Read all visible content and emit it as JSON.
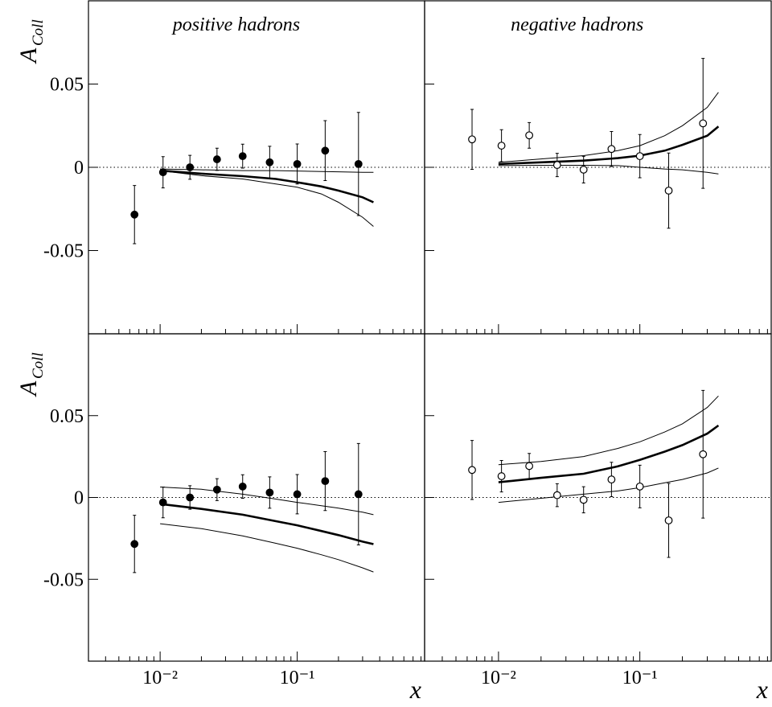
{
  "chart_data": [
    {
      "type": "scatter",
      "title": "positive hadrons",
      "ylabel": "A",
      "ylabel_sub": "Coll",
      "log_x": true,
      "xlim": [
        0.003,
        0.85
      ],
      "ylim": [
        -0.1,
        0.1
      ],
      "xticks": [
        0.01,
        0.1
      ],
      "xminorticks": [
        0.003,
        0.004,
        0.005,
        0.006,
        0.007,
        0.008,
        0.009,
        0.02,
        0.03,
        0.04,
        0.05,
        0.06,
        0.07,
        0.08,
        0.09,
        0.2,
        0.3,
        0.4,
        0.5,
        0.6,
        0.7,
        0.8
      ],
      "yticks": [
        -0.05,
        0,
        0.05
      ],
      "xtick_labels": false,
      "ytick_labels": true,
      "zero_line": true,
      "points": {
        "marker": "filled",
        "color": "#000000",
        "x": [
          0.0065,
          0.0105,
          0.0165,
          0.026,
          0.04,
          0.063,
          0.1,
          0.16,
          0.28
        ],
        "values": [
          -0.0284,
          -0.003,
          0.0,
          0.0048,
          0.0067,
          0.003,
          0.002,
          0.01,
          0.002
        ],
        "errors": [
          0.0175,
          0.0094,
          0.0072,
          0.0067,
          0.0072,
          0.0096,
          0.012,
          0.018,
          0.031
        ]
      },
      "curve_x": [
        0.01,
        0.02,
        0.04,
        0.07,
        0.1,
        0.15,
        0.2,
        0.3,
        0.36
      ],
      "series": [
        {
          "color": "#000000",
          "width": 1,
          "values": [
            -0.001,
            -0.0015,
            -0.002,
            -0.002,
            -0.0022,
            -0.0025,
            -0.0027,
            -0.003,
            -0.003
          ]
        },
        {
          "color": "#000000",
          "width": 2.6,
          "values": [
            -0.002,
            -0.0038,
            -0.0053,
            -0.007,
            -0.009,
            -0.0115,
            -0.014,
            -0.018,
            -0.021
          ]
        },
        {
          "color": "#000000",
          "width": 1,
          "values": [
            -0.002,
            -0.005,
            -0.007,
            -0.01,
            -0.012,
            -0.016,
            -0.021,
            -0.03,
            -0.0355
          ]
        }
      ]
    },
    {
      "type": "scatter",
      "title": "negative hadrons",
      "log_x": true,
      "xlim": [
        0.003,
        0.85
      ],
      "ylim": [
        -0.1,
        0.1
      ],
      "xticks": [
        0.01,
        0.1
      ],
      "xminorticks": [
        0.003,
        0.004,
        0.005,
        0.006,
        0.007,
        0.008,
        0.009,
        0.02,
        0.03,
        0.04,
        0.05,
        0.06,
        0.07,
        0.08,
        0.09,
        0.2,
        0.3,
        0.4,
        0.5,
        0.6,
        0.7,
        0.8
      ],
      "yticks": [
        -0.05,
        0,
        0.05
      ],
      "xtick_labels": false,
      "ytick_labels": false,
      "zero_line": true,
      "points": {
        "marker": "open",
        "color": "#000000",
        "x": [
          0.0065,
          0.0105,
          0.0165,
          0.026,
          0.04,
          0.063,
          0.1,
          0.16,
          0.28
        ],
        "values": [
          0.0168,
          0.013,
          0.0192,
          0.0014,
          -0.0014,
          0.011,
          0.0067,
          -0.014,
          0.0264
        ],
        "errors": [
          0.018,
          0.0096,
          0.0077,
          0.007,
          0.008,
          0.0105,
          0.013,
          0.0226,
          0.039
        ]
      },
      "curve_x": [
        0.01,
        0.02,
        0.04,
        0.07,
        0.1,
        0.15,
        0.2,
        0.3,
        0.36
      ],
      "series": [
        {
          "color": "#000000",
          "width": 1,
          "values": [
            0.003,
            0.005,
            0.007,
            0.01,
            0.013,
            0.019,
            0.025,
            0.036,
            0.045
          ]
        },
        {
          "color": "#000000",
          "width": 2.6,
          "values": [
            0.002,
            0.003,
            0.004,
            0.0055,
            0.007,
            0.01,
            0.0135,
            0.019,
            0.0245
          ]
        },
        {
          "color": "#000000",
          "width": 1,
          "values": [
            0.001,
            0.0012,
            0.0012,
            0.001,
            0.0,
            -0.001,
            -0.0015,
            -0.003,
            -0.004
          ]
        }
      ]
    },
    {
      "type": "scatter",
      "ylabel": "A",
      "ylabel_sub": "Coll",
      "xlabel": "x",
      "log_x": true,
      "xlim": [
        0.003,
        0.85
      ],
      "ylim": [
        -0.1,
        0.1
      ],
      "xticks": [
        {
          "value": 0.01,
          "label": "10⁻²"
        },
        {
          "value": 0.1,
          "label": "10⁻¹"
        }
      ],
      "xminorticks": [
        0.003,
        0.004,
        0.005,
        0.006,
        0.007,
        0.008,
        0.009,
        0.02,
        0.03,
        0.04,
        0.05,
        0.06,
        0.07,
        0.08,
        0.09,
        0.2,
        0.3,
        0.4,
        0.5,
        0.6,
        0.7,
        0.8
      ],
      "yticks": [
        -0.05,
        0,
        0.05
      ],
      "xtick_labels": true,
      "ytick_labels": true,
      "zero_line": true,
      "points": {
        "marker": "filled",
        "color": "#000000",
        "x": [
          0.0065,
          0.0105,
          0.0165,
          0.026,
          0.04,
          0.063,
          0.1,
          0.16,
          0.28
        ],
        "values": [
          -0.0284,
          -0.003,
          0.0,
          0.0048,
          0.0067,
          0.003,
          0.002,
          0.01,
          0.002
        ],
        "errors": [
          0.0175,
          0.0094,
          0.0072,
          0.0067,
          0.0072,
          0.0096,
          0.012,
          0.018,
          0.031
        ]
      },
      "curve_x": [
        0.01,
        0.02,
        0.04,
        0.07,
        0.1,
        0.15,
        0.2,
        0.3,
        0.36
      ],
      "series": [
        {
          "color": "#000000",
          "width": 1,
          "values": [
            0.0064,
            0.005,
            0.002,
            -0.001,
            -0.003,
            -0.005,
            -0.0065,
            -0.009,
            -0.0105
          ]
        },
        {
          "color": "#000000",
          "width": 2.6,
          "values": [
            -0.004,
            -0.007,
            -0.0105,
            -0.0145,
            -0.017,
            -0.0205,
            -0.023,
            -0.027,
            -0.0285
          ]
        },
        {
          "color": "#000000",
          "width": 1,
          "values": [
            -0.016,
            -0.019,
            -0.0235,
            -0.028,
            -0.031,
            -0.035,
            -0.038,
            -0.043,
            -0.0455
          ]
        }
      ]
    },
    {
      "type": "scatter",
      "xlabel": "x",
      "log_x": true,
      "xlim": [
        0.003,
        0.85
      ],
      "ylim": [
        -0.1,
        0.1
      ],
      "xticks": [
        {
          "value": 0.01,
          "label": "10⁻²"
        },
        {
          "value": 0.1,
          "label": "10⁻¹"
        }
      ],
      "xminorticks": [
        0.003,
        0.004,
        0.005,
        0.006,
        0.007,
        0.008,
        0.009,
        0.02,
        0.03,
        0.04,
        0.05,
        0.06,
        0.07,
        0.08,
        0.09,
        0.2,
        0.3,
        0.4,
        0.5,
        0.6,
        0.7,
        0.8
      ],
      "yticks": [
        -0.05,
        0,
        0.05
      ],
      "xtick_labels": true,
      "ytick_labels": false,
      "zero_line": true,
      "points": {
        "marker": "open",
        "color": "#000000",
        "x": [
          0.0065,
          0.0105,
          0.0165,
          0.026,
          0.04,
          0.063,
          0.1,
          0.16,
          0.28
        ],
        "values": [
          0.0168,
          0.013,
          0.0192,
          0.0014,
          -0.0014,
          0.011,
          0.0067,
          -0.014,
          0.0264
        ],
        "errors": [
          0.018,
          0.0096,
          0.0077,
          0.007,
          0.008,
          0.0105,
          0.013,
          0.0226,
          0.039
        ]
      },
      "curve_x": [
        0.01,
        0.02,
        0.04,
        0.07,
        0.1,
        0.15,
        0.2,
        0.3,
        0.36
      ],
      "series": [
        {
          "color": "#000000",
          "width": 1,
          "values": [
            0.02,
            0.022,
            0.025,
            0.03,
            0.034,
            0.04,
            0.045,
            0.055,
            0.062
          ]
        },
        {
          "color": "#000000",
          "width": 2.6,
          "values": [
            0.0093,
            0.012,
            0.0145,
            0.019,
            0.023,
            0.028,
            0.032,
            0.039,
            0.044
          ]
        },
        {
          "color": "#000000",
          "width": 1,
          "values": [
            -0.003,
            -0.0005,
            0.002,
            0.004,
            0.006,
            0.009,
            0.011,
            0.015,
            0.018
          ]
        }
      ]
    }
  ]
}
